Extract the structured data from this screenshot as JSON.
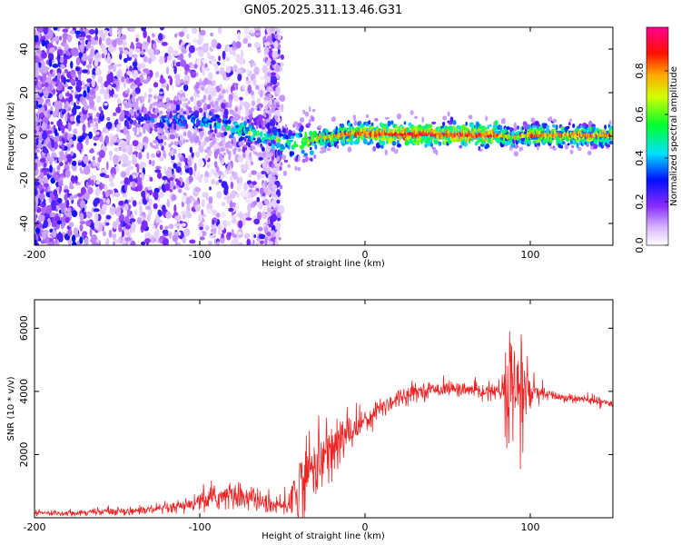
{
  "title": "GN05.2025.311.13.46.G31",
  "colors": {
    "snr_line": "#ee2222",
    "axis": "#000000",
    "colormap": [
      "#e0c8ff",
      "#9a4cff",
      "#5a00e0",
      "#0a10ff",
      "#00d8ff",
      "#00ff4c",
      "#ffff00",
      "#ff8800",
      "#ff0000",
      "#ff0080"
    ]
  },
  "chart_data": [
    {
      "type": "heatmap",
      "title": "",
      "xlabel": "Height of straight line (km)",
      "ylabel": "Frequency (Hz)",
      "xlim": [
        -200,
        150
      ],
      "ylim": [
        -50,
        50
      ],
      "xticks": [
        -200,
        -100,
        0,
        100
      ],
      "yticks": [
        -40,
        -20,
        0,
        20,
        40
      ],
      "xtick_labels": [
        "-200",
        "-100",
        "0",
        "100"
      ],
      "ytick_labels": [
        "-40",
        "-20",
        "0",
        "20",
        "40"
      ],
      "description_of_signal": {
        "noise_region_km": [
          -200,
          -60
        ],
        "noise_band_hz": [
          -50,
          50
        ],
        "signal_track": {
          "x": [
            -140,
            -120,
            -100,
            -90,
            -80,
            -70,
            -60,
            -50,
            -40,
            -30,
            -20,
            -10,
            0,
            20,
            40,
            60,
            80,
            85,
            90,
            95,
            100,
            120,
            150
          ],
          "y": [
            8,
            7,
            8,
            6,
            3,
            2,
            0,
            -3,
            -4,
            -1,
            0,
            1,
            1.5,
            1,
            0.8,
            0.5,
            0.5,
            0,
            -1,
            0,
            0.5,
            0.5,
            0.5
          ],
          "amplitude": [
            0.3,
            0.35,
            0.4,
            0.45,
            0.45,
            0.5,
            0.5,
            0.55,
            0.55,
            0.7,
            0.75,
            0.8,
            0.85,
            0.9,
            0.9,
            0.9,
            0.85,
            0.75,
            0.6,
            0.7,
            0.8,
            0.8,
            0.8
          ]
        }
      },
      "colorbar": {
        "label": "Normalized spectral amplitude",
        "range": [
          0,
          1
        ],
        "ticks": [
          0.0,
          0.2,
          0.4,
          0.6,
          0.8
        ],
        "tick_labels": [
          "0.0",
          "0.2",
          "0.4",
          "0.6",
          "0.8"
        ]
      }
    },
    {
      "type": "line",
      "title": "",
      "xlabel": "Height of straight line (km)",
      "ylabel": "SNR (10 * v/v)",
      "xlim": [
        -200,
        150
      ],
      "ylim": [
        0,
        6900
      ],
      "xticks": [
        -200,
        -100,
        0,
        100
      ],
      "yticks": [
        2000,
        4000,
        6000
      ],
      "xtick_labels": [
        "-200",
        "-100",
        "0",
        "100"
      ],
      "ytick_labels": [
        "2000",
        "4000",
        "6000"
      ],
      "series": [
        {
          "name": "SNR",
          "envelope": {
            "x": [
              -200,
              -180,
              -160,
              -140,
              -120,
              -110,
              -100,
              -90,
              -80,
              -70,
              -60,
              -50,
              -45,
              -40,
              -35,
              -30,
              -25,
              -20,
              -15,
              -10,
              -5,
              0,
              10,
              20,
              30,
              40,
              50,
              60,
              70,
              80,
              85,
              88,
              92,
              96,
              100,
              110,
              120,
              130,
              140,
              150
            ],
            "center": [
              150,
              150,
              200,
              220,
              280,
              350,
              500,
              650,
              700,
              650,
              450,
              350,
              600,
              900,
              1400,
              1700,
              1900,
              2200,
              2400,
              2700,
              2900,
              3100,
              3500,
              3800,
              4000,
              4050,
              4100,
              4050,
              4000,
              4000,
              3900,
              4000,
              3950,
              4000,
              3950,
              3900,
              3800,
              3750,
              3700,
              3600
            ],
            "amplitude": [
              100,
              100,
              120,
              150,
              200,
              250,
              350,
              450,
              500,
              450,
              350,
              300,
              900,
              1300,
              1200,
              1100,
              1200,
              1300,
              900,
              700,
              600,
              500,
              400,
              350,
              300,
              250,
              250,
              250,
              250,
              250,
              1500,
              2500,
              2500,
              2500,
              600,
              200,
              150,
              150,
              150,
              150
            ]
          }
        }
      ]
    }
  ]
}
